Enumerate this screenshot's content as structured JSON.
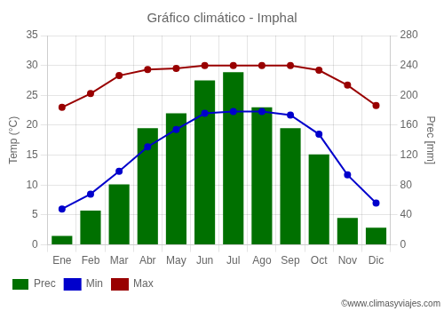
{
  "chart_data": {
    "type": "bar",
    "title": "Gráfico climático - Imphal",
    "categories": [
      "Ene",
      "Feb",
      "Mar",
      "Abr",
      "May",
      "Jun",
      "Jul",
      "Ago",
      "Sep",
      "Oct",
      "Nov",
      "Dic"
    ],
    "series": [
      {
        "name": "Prec",
        "type": "bar",
        "axis": "y2",
        "color": "#007000",
        "values": [
          12,
          46,
          81,
          156,
          176,
          220,
          231,
          184,
          156,
          121,
          36,
          23
        ]
      },
      {
        "name": "Min",
        "type": "line",
        "color": "#0000cc",
        "marker": "circle",
        "values": [
          6.0,
          8.5,
          12.3,
          16.4,
          19.3,
          22.0,
          22.3,
          22.3,
          21.7,
          18.5,
          11.7,
          7.0
        ]
      },
      {
        "name": "Max",
        "type": "line",
        "color": "#990000",
        "marker": "circle",
        "values": [
          23.0,
          25.3,
          28.3,
          29.3,
          29.5,
          30.0,
          30.0,
          30.0,
          30.0,
          29.2,
          26.7,
          23.3
        ]
      }
    ],
    "ylabel": "Temp (°C)",
    "y2label": "Prec [mm]",
    "ylim": [
      0,
      35
    ],
    "yticks": [
      0,
      5,
      10,
      15,
      20,
      25,
      30,
      35
    ],
    "y2lim": [
      0,
      280
    ],
    "y2ticks": [
      0,
      40,
      80,
      120,
      160,
      200,
      240,
      280
    ],
    "grid": true,
    "legend": "bottom",
    "annotations": [
      "©www.climasyviajes.com"
    ]
  }
}
